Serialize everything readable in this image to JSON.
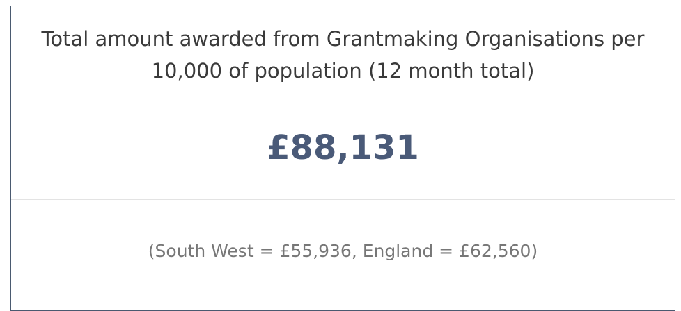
{
  "card": {
    "title": "Total amount awarded from Grantmaking Organisations per 10,000 of population (12 month total)",
    "value": "£88,131",
    "comparison": "(South West = £55,936, England = £62,560)"
  }
}
